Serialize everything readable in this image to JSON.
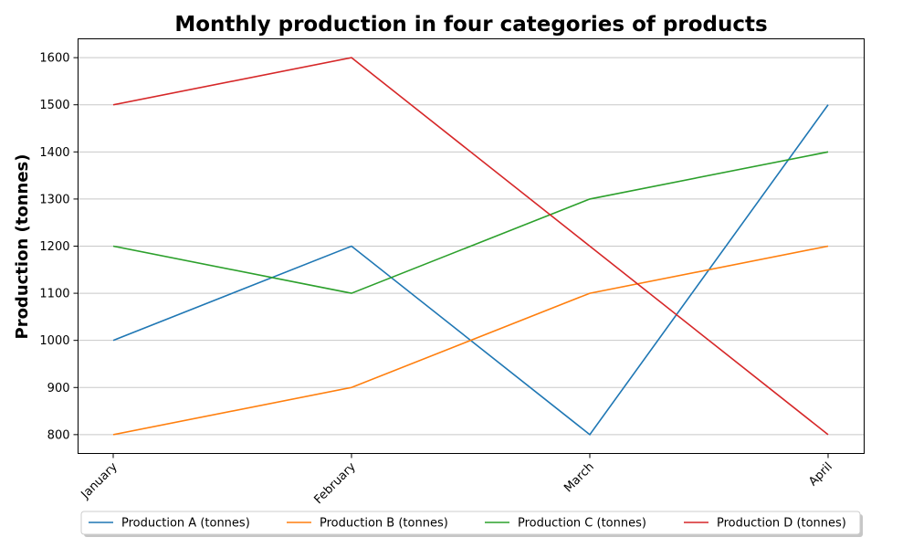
{
  "chart_data": {
    "type": "line",
    "title": "Monthly production in four categories of products",
    "xlabel": "",
    "ylabel": "Production (tonnes)",
    "categories": [
      "January",
      "February",
      "March",
      "April"
    ],
    "ylim": [
      760,
      1640
    ],
    "yticks": [
      800,
      900,
      1000,
      1100,
      1200,
      1300,
      1400,
      1500,
      1600
    ],
    "grid": "horizontal",
    "legend_position": "bottom-center",
    "series": [
      {
        "name": "Production A (tonnes)",
        "color": "#1f77b4",
        "values": [
          1000,
          1200,
          800,
          1500
        ]
      },
      {
        "name": "Production B (tonnes)",
        "color": "#ff7f0e",
        "values": [
          800,
          900,
          1100,
          1200
        ]
      },
      {
        "name": "Production C (tonnes)",
        "color": "#2ca02c",
        "values": [
          1200,
          1100,
          1300,
          1400
        ]
      },
      {
        "name": "Production D (tonnes)",
        "color": "#d62728",
        "values": [
          1500,
          1600,
          1200,
          800
        ]
      }
    ]
  }
}
